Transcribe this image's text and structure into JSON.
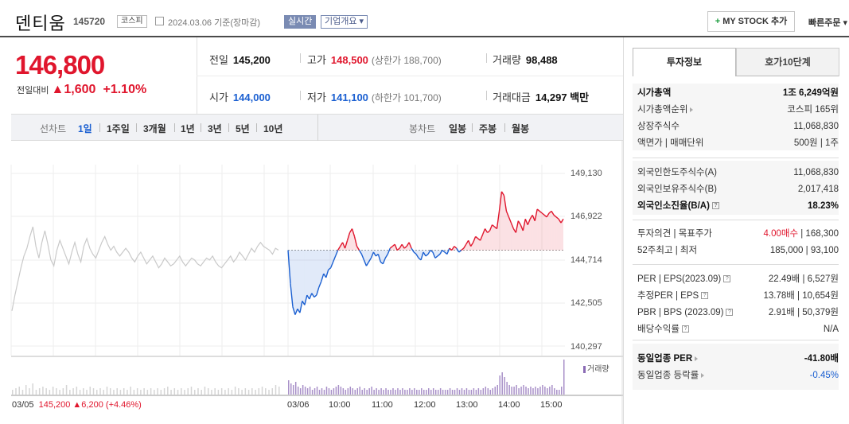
{
  "header": {
    "name": "덴티움",
    "code": "145720",
    "market": "코스피",
    "date": "2024.03.06 기준(장마감)",
    "realtime": "실시간",
    "company_overview": "기업개요 ▾",
    "mystock_plus": "+",
    "mystock_label": "MY STOCK 추가",
    "quick_order": "빠른주문 ▾"
  },
  "price": {
    "current": "146,800",
    "change_label": "전일대비",
    "change_value": "▲1,600",
    "change_pct": "+1.10%"
  },
  "summary": {
    "prev_close_label": "전일",
    "prev_close": "145,200",
    "high_label": "고가",
    "high": "148,500",
    "upper_limit": "(상한가 188,700)",
    "volume_label": "거래량",
    "volume": "98,488",
    "open_label": "시가",
    "open": "144,000",
    "low_label": "저가",
    "low": "141,100",
    "lower_limit": "(하한가 101,700)",
    "amount_label": "거래대금",
    "amount": "14,297 백만"
  },
  "toolbar": {
    "line_chart": "선차트",
    "periods": [
      "1일",
      "1주일",
      "3개월",
      "1년",
      "3년",
      "5년",
      "10년"
    ],
    "candle_chart": "봉차트",
    "candles": [
      "일봉",
      "주봉",
      "월봉"
    ]
  },
  "colors": {
    "up": "#e0162d",
    "down": "#1a5fd1",
    "volume": "#8b6bb5"
  },
  "chart_data": {
    "type": "line",
    "y_ticks": [
      "149,130",
      "146,922",
      "144,714",
      "142,505",
      "140,297"
    ],
    "ylim": [
      140297,
      149130
    ],
    "reference_line": 145200,
    "x_labels": [
      "03/05",
      "03/06",
      "10:00",
      "11:00",
      "12:00",
      "13:00",
      "14:00",
      "15:00"
    ],
    "volume_legend": "거래량",
    "prev_day": {
      "date": "03/05",
      "close": "145,200",
      "change": "▲6,200",
      "pct": "(+4.46%)"
    },
    "series": [
      {
        "values": [
          142100,
          142900,
          143600,
          144300,
          144900,
          145300,
          145900,
          146400,
          145400,
          144800,
          145600,
          146200,
          145500,
          144700,
          144400,
          145200,
          145700,
          145300,
          144900,
          144500,
          145100,
          145600,
          145000,
          144600,
          145400,
          145800,
          145300,
          145000,
          144800,
          145200,
          145600,
          145900,
          145500,
          145200,
          145400,
          145100,
          144900,
          145100,
          145300,
          145100,
          144800,
          144600,
          144900,
          145100,
          144800,
          144500,
          144700,
          144900,
          144600,
          144300,
          144500,
          144800,
          144600,
          144400,
          144500,
          144700,
          144900,
          144600,
          144400,
          144600,
          144800,
          144700,
          144500,
          144400,
          144600,
          144800,
          144700,
          144900,
          144600,
          144400,
          144300,
          144500,
          144700,
          144900,
          144600,
          144800,
          145100,
          144900,
          144700,
          145000,
          145300,
          145100,
          145400,
          145600,
          145400,
          145300,
          145200,
          145000,
          145300,
          145200
        ]
      },
      {
        "values": [
          145200,
          143500,
          142300,
          141900,
          142200,
          142000,
          142600,
          142400,
          142900,
          142700,
          143000,
          142800,
          142900,
          143300,
          143600,
          144000,
          143800,
          144200,
          144300,
          144600,
          144900,
          145200,
          145400,
          145600,
          145300,
          145700,
          146100,
          146300,
          145900,
          145400,
          145200,
          145000,
          144700,
          144400,
          144600,
          144800,
          145100,
          144900,
          145000,
          144600,
          144500,
          144800,
          145000,
          145300,
          145400,
          145500,
          145200,
          145300,
          145500,
          145300,
          145400,
          145600,
          145300,
          145100,
          145000,
          144800,
          144700,
          145100,
          144900,
          145000,
          145200,
          145100,
          144800,
          144900,
          145000,
          145200,
          145100,
          145000,
          145300,
          145200,
          145400,
          145300,
          145100,
          145200,
          145300,
          145500,
          145700,
          145400,
          145600,
          145900,
          145800,
          145700,
          146000,
          146300,
          146100,
          146200,
          146500,
          146400,
          146300,
          147200,
          148200,
          148000,
          147200,
          146900,
          146600,
          146300,
          146100,
          146700,
          146500,
          146200,
          146800,
          146500,
          146800,
          147000,
          146700,
          147300,
          147200,
          147100,
          147000,
          146900,
          147100,
          147200,
          147000,
          146900,
          146800,
          146600,
          146800
        ]
      }
    ],
    "volume_prev": [
      3,
      4,
      5,
      3,
      6,
      4,
      7,
      3,
      4,
      5,
      4,
      3,
      5,
      4,
      3,
      4,
      6,
      3,
      4,
      5,
      3,
      4,
      3,
      5,
      4,
      3,
      4,
      3,
      5,
      4,
      3,
      4,
      3,
      4,
      3,
      5,
      3,
      4,
      3,
      4,
      3,
      4,
      3,
      4,
      3,
      4,
      5,
      3,
      4,
      3,
      4,
      3,
      4,
      5,
      3,
      4,
      3,
      5,
      4,
      3,
      4,
      3,
      4,
      3,
      4,
      3,
      5,
      4,
      3,
      4,
      3,
      4,
      3,
      4,
      5,
      4,
      3,
      4,
      6,
      5
    ],
    "volume_today": [
      9,
      7,
      6,
      8,
      5,
      4,
      6,
      5,
      4,
      5,
      3,
      4,
      5,
      3,
      4,
      3,
      5,
      4,
      3,
      4,
      5,
      6,
      5,
      4,
      3,
      4,
      5,
      4,
      3,
      4,
      5,
      3,
      4,
      3,
      4,
      5,
      3,
      4,
      3,
      4,
      3,
      4,
      3,
      3,
      4,
      3,
      4,
      3,
      4,
      3,
      3,
      4,
      3,
      4,
      3,
      3,
      4,
      3,
      3,
      4,
      3,
      4,
      3,
      3,
      4,
      3,
      3,
      3,
      4,
      3,
      3,
      4,
      3,
      4,
      3,
      4,
      3,
      3,
      4,
      3,
      4,
      3,
      4,
      5,
      4,
      3,
      4,
      5,
      6,
      12,
      14,
      11,
      8,
      6,
      5,
      5,
      6,
      4,
      5,
      6,
      5,
      4,
      5,
      4,
      5,
      4,
      5,
      6,
      5,
      4,
      5,
      6,
      4,
      3,
      3,
      5,
      22
    ]
  },
  "invest": {
    "tab_active": "투자정보",
    "tab_other": "호가10단계",
    "g1": [
      {
        "k": "시가총액",
        "v": "1조 6,249억원",
        "bold": true
      },
      {
        "k": "시가총액순위",
        "v": "코스피 165위",
        "tri": true
      },
      {
        "k": "상장주식수",
        "v": "11,068,830"
      },
      {
        "k": "액면가 | 매매단위",
        "v": "500원 | 1주"
      }
    ],
    "g2": [
      {
        "k": "외국인한도주식수(A)",
        "v": "11,068,830"
      },
      {
        "k": "외국인보유주식수(B)",
        "v": "2,017,418"
      },
      {
        "k": "외국인소진율(B/A)",
        "v": "18.23%",
        "bold": true,
        "q": true
      }
    ],
    "g3": [
      {
        "k": "투자의견 | 목표주가",
        "v_red": "4.00매수",
        "v": " | 168,300"
      },
      {
        "k": "52주최고 | 최저",
        "v": "185,000 | 93,100"
      }
    ],
    "g4": [
      {
        "k": "PER | EPS(2023.09)",
        "v": "22.49배 | 6,527원",
        "q": true
      },
      {
        "k": "추정PER | EPS",
        "v": "13.78배 | 10,654원",
        "q": true
      },
      {
        "k": "PBR | BPS (2023.09)",
        "v": "2.91배 | 50,379원",
        "q": true
      },
      {
        "k": "배당수익률",
        "v": "N/A",
        "q": true
      }
    ],
    "g5": [
      {
        "k": "동일업종 PER",
        "v": "-41.80배",
        "bold": true,
        "tri": true
      },
      {
        "k": "동일업종 등락률",
        "v": "-0.45%",
        "blue": true,
        "tri": true
      }
    ]
  }
}
